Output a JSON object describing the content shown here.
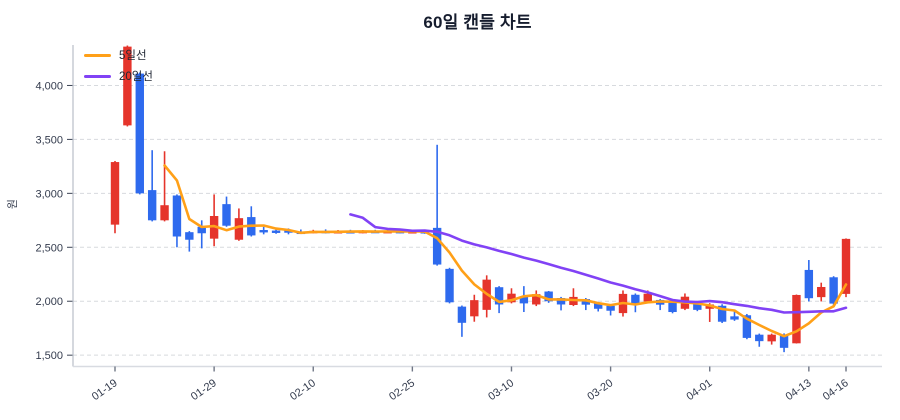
{
  "chart_data": {
    "type": "candlestick",
    "title": "60일 캔들 차트",
    "ylabel": "원",
    "unit": "원",
    "legend_position": "upper-left",
    "grid": true,
    "up_color": "#e5342b",
    "down_color": "#2e6aee",
    "grid_color": "#d7dade",
    "spine_color": "#b9bfc9",
    "bottom_spine_color": "#d8dbe1",
    "tick_text_color": "#333b4d",
    "title_color": "#161d2e",
    "ylim": [
      1395,
      4375
    ],
    "y_ticks": [
      1500,
      2000,
      2500,
      3000,
      3500,
      4000
    ],
    "y_tick_labels": [
      "1,500",
      "2,000",
      "2,500",
      "3,000",
      "3,500",
      "4,000"
    ],
    "x_ticks": [
      {
        "index": 0,
        "label": "01-19"
      },
      {
        "index": 8,
        "label": "01-29"
      },
      {
        "index": 16,
        "label": "02-10"
      },
      {
        "index": 24,
        "label": "02-25"
      },
      {
        "index": 32,
        "label": "03-10"
      },
      {
        "index": 40,
        "label": "03-20"
      },
      {
        "index": 48,
        "label": "04-01"
      },
      {
        "index": 56,
        "label": "04-13"
      },
      {
        "index": 59,
        "label": "04-16"
      }
    ],
    "moving_averages": [
      {
        "label": "5일선",
        "window": 5,
        "color": "#ffa018"
      },
      {
        "label": "20일선",
        "window": 20,
        "color": "#8142f5"
      }
    ],
    "candles_format": [
      "open",
      "high",
      "low",
      "close"
    ],
    "candles": [
      [
        2710,
        3300,
        2630,
        3290
      ],
      [
        3630,
        4370,
        3620,
        4360
      ],
      [
        4110,
        4120,
        2990,
        3000
      ],
      [
        3030,
        3400,
        2740,
        2750
      ],
      [
        2750,
        3390,
        2740,
        2890
      ],
      [
        2980,
        2990,
        2500,
        2600
      ],
      [
        2640,
        2650,
        2460,
        2570
      ],
      [
        2690,
        2750,
        2490,
        2630
      ],
      [
        2580,
        2990,
        2510,
        2790
      ],
      [
        2900,
        2970,
        2690,
        2700
      ],
      [
        2570,
        2860,
        2560,
        2770
      ],
      [
        2780,
        2880,
        2600,
        2610
      ],
      [
        2660,
        2690,
        2620,
        2640
      ],
      [
        2655,
        2680,
        2625,
        2645
      ],
      [
        2660,
        2675,
        2620,
        2635
      ],
      [
        2645,
        2665,
        2628,
        2642
      ],
      [
        2640,
        2662,
        2630,
        2652
      ],
      [
        2652,
        2666,
        2628,
        2640
      ],
      [
        2642,
        2660,
        2630,
        2650
      ],
      [
        2650,
        2662,
        2632,
        2641
      ],
      [
        2643,
        2660,
        2630,
        2652
      ],
      [
        2652,
        2662,
        2633,
        2644
      ],
      [
        2645,
        2661,
        2635,
        2651
      ],
      [
        2651,
        2660,
        2630,
        2642
      ],
      [
        2643,
        2662,
        2631,
        2650
      ],
      [
        2650,
        2658,
        2625,
        2638
      ],
      [
        2680,
        3450,
        2330,
        2340
      ],
      [
        2300,
        2310,
        1980,
        1990
      ],
      [
        1950,
        1960,
        1670,
        1800
      ],
      [
        1860,
        2060,
        1810,
        2010
      ],
      [
        1920,
        2240,
        1850,
        2200
      ],
      [
        2130,
        2140,
        1890,
        1970
      ],
      [
        1990,
        2120,
        1980,
        2070
      ],
      [
        2040,
        2140,
        1900,
        1980
      ],
      [
        1970,
        2100,
        1955,
        2065
      ],
      [
        2090,
        2095,
        1985,
        2000
      ],
      [
        2030,
        2040,
        1915,
        1970
      ],
      [
        1965,
        2120,
        1955,
        2040
      ],
      [
        2020,
        2030,
        1918,
        1968
      ],
      [
        1980,
        1992,
        1905,
        1930
      ],
      [
        1958,
        1970,
        1868,
        1912
      ],
      [
        1890,
        2100,
        1858,
        2068
      ],
      [
        2060,
        2072,
        1898,
        1970
      ],
      [
        1998,
        2100,
        1988,
        2070
      ],
      [
        2012,
        2020,
        1918,
        1968
      ],
      [
        2000,
        2010,
        1888,
        1900
      ],
      [
        1930,
        2072,
        1918,
        2042
      ],
      [
        1980,
        1992,
        1908,
        1920
      ],
      [
        1930,
        1982,
        1808,
        1970
      ],
      [
        1958,
        1972,
        1798,
        1810
      ],
      [
        1860,
        1920,
        1818,
        1830
      ],
      [
        1870,
        1882,
        1648,
        1660
      ],
      [
        1690,
        1700,
        1578,
        1630
      ],
      [
        1628,
        1700,
        1598,
        1690
      ],
      [
        1690,
        1702,
        1528,
        1568
      ],
      [
        1610,
        2062,
        1608,
        2058
      ],
      [
        2290,
        2382,
        1998,
        2028
      ],
      [
        2038,
        2172,
        1998,
        2132
      ],
      [
        2222,
        2232,
        1962,
        1978
      ],
      [
        2068,
        2582,
        2038,
        2578
      ]
    ]
  }
}
